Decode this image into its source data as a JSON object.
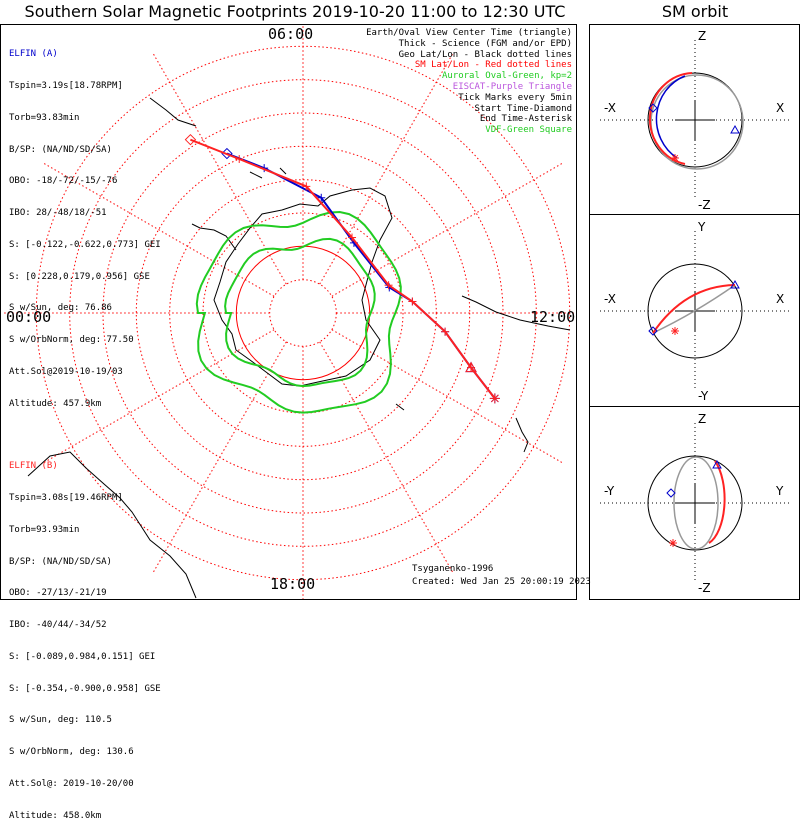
{
  "title": "Southern Solar Magnetic Footprints 2019-10-20 11:00 to 12:30 UTC",
  "orbit_title": "SM orbit",
  "hour_labels": {
    "top": "06:00",
    "left": "00:00",
    "right": "12:00",
    "bottom": "18:00"
  },
  "legend": [
    {
      "text": "Earth/Oval View Center Time (triangle)",
      "color": "#000000"
    },
    {
      "text": "Thick - Science (FGM and/or EPD)",
      "color": "#000000"
    },
    {
      "text": "Geo Lat/Lon - Black dotted lines",
      "color": "#000000"
    },
    {
      "text": "SM Lat/Lon - Red dotted lines",
      "color": "#ff0000"
    },
    {
      "text": "Auroral Oval-Green, kp=2",
      "color": "#22cc22"
    },
    {
      "text": "EISCAT-Purple Triangle",
      "color": "#bb55dd"
    },
    {
      "text": "Tick Marks every 5min",
      "color": "#000000"
    },
    {
      "text": "Start Time-Diamond",
      "color": "#000000"
    },
    {
      "text": "End Time-Asterisk",
      "color": "#000000"
    },
    {
      "text": "VDF-Green Square",
      "color": "#22cc22"
    }
  ],
  "elfin_a": {
    "name": "ELFIN (A)",
    "color": "#0000cc",
    "lines": [
      "Tspin=3.19s[18.78RPM]",
      "Torb=93.83min",
      "B/SP: (NA/ND/SD/SA)",
      "OBO: -18/-72/-15/-76",
      "IBO: 28/-48/18/-51",
      "S: [-0.122,-0.622,0.773] GEI",
      "S: [0.228,0.179,0.956] GSE",
      "S w/Sun, deg: 76.86",
      "S w/OrbNorm, deg: 77.50",
      "Att.Sol@2019-10-19/03",
      "Altitude: 457.9km"
    ]
  },
  "elfin_b": {
    "name": "ELFIN (B)",
    "color": "#ff2222",
    "lines": [
      "Tspin=3.08s[19.46RPM]",
      "Torb=93.93min",
      "B/SP: (NA/ND/SD/SA)",
      "OBO: -27/13/-21/19",
      "IBO: -40/44/-34/52",
      "S: [-0.089,0.984,0.151] GEI",
      "S: [-0.354,-0.900,0.958] GSE",
      "S w/Sun, deg: 110.5",
      "S w/OrbNorm, deg: 130.6",
      "Att.Sol@: 2019-10-20/00",
      "Altitude: 458.0km"
    ]
  },
  "footer": {
    "model": "Tsyganenko-1996",
    "created": "Created: Wed Jan 25 20:00:19 2023"
  },
  "colors": {
    "elfin_a": "#0000cc",
    "elfin_b": "#ff2222",
    "oval": "#22cc22",
    "grid": "#ff0000",
    "orbit_gray": "#999999"
  },
  "chart_data": [
    {
      "type": "polar-map",
      "title": "Southern Solar Magnetic Footprints 2019-10-20 11:00 to 12:30 UTC",
      "center": "South magnetic pole",
      "mlt_labels": [
        "00:00",
        "06:00",
        "12:00",
        "18:00"
      ],
      "sm_latitude_rings_deg": [
        -80,
        -70,
        -60,
        -50,
        -40,
        -30,
        -20,
        -10
      ],
      "sm_longitude_spokes_deg": 30,
      "auroral_oval_kp": 2,
      "series": [
        {
          "name": "ELFIN (A) footprint",
          "color": "#0000cc",
          "points_mlat_mlt": [
            [
              -37,
              4.3
            ],
            [
              -45,
              5.0
            ],
            [
              -55,
              6.6
            ],
            [
              -64,
              8.4
            ],
            [
              -63,
              10.9
            ],
            [
              -57,
              11.6
            ],
            [
              -47,
              12.5
            ],
            [
              -37,
              13.2
            ],
            [
              -27,
              13.6
            ]
          ]
        },
        {
          "name": "ELFIN (B) footprint",
          "color": "#ff2222",
          "points_mlat_mlt": [
            [
              -28,
              3.8
            ],
            [
              -40,
              4.5
            ],
            [
              -52,
              6.1
            ],
            [
              -63,
              8.2
            ],
            [
              -63,
              10.8
            ],
            [
              -57,
              11.6
            ],
            [
              -47,
              12.5
            ],
            [
              -37,
              13.2
            ],
            [
              -27,
              13.6
            ]
          ]
        }
      ]
    },
    {
      "type": "orbit",
      "title": "SM orbit (X-Z)",
      "xlabel_neg": "-X",
      "xlabel_pos": "X",
      "ylabel_pos": "Z",
      "ylabel_neg": "-Z",
      "axis_range_re": [
        -1.5,
        1.5
      ],
      "markers": [
        "start-diamond",
        "end-asterisk",
        "view-triangle"
      ]
    },
    {
      "type": "orbit",
      "title": "SM orbit (X-Y)",
      "xlabel_neg": "-X",
      "xlabel_pos": "X",
      "ylabel_pos": "Y",
      "ylabel_neg": "-Y",
      "axis_range_re": [
        -1.5,
        1.5
      ],
      "markers": [
        "start-diamond",
        "end-asterisk",
        "view-triangle"
      ]
    },
    {
      "type": "orbit",
      "title": "SM orbit (Y-Z)",
      "xlabel_neg": "-Y",
      "xlabel_pos": "Y",
      "ylabel_pos": "Z",
      "ylabel_neg": "-Z",
      "axis_range_re": [
        -1.5,
        1.5
      ],
      "markers": [
        "start-diamond",
        "end-asterisk",
        "view-triangle"
      ]
    }
  ]
}
